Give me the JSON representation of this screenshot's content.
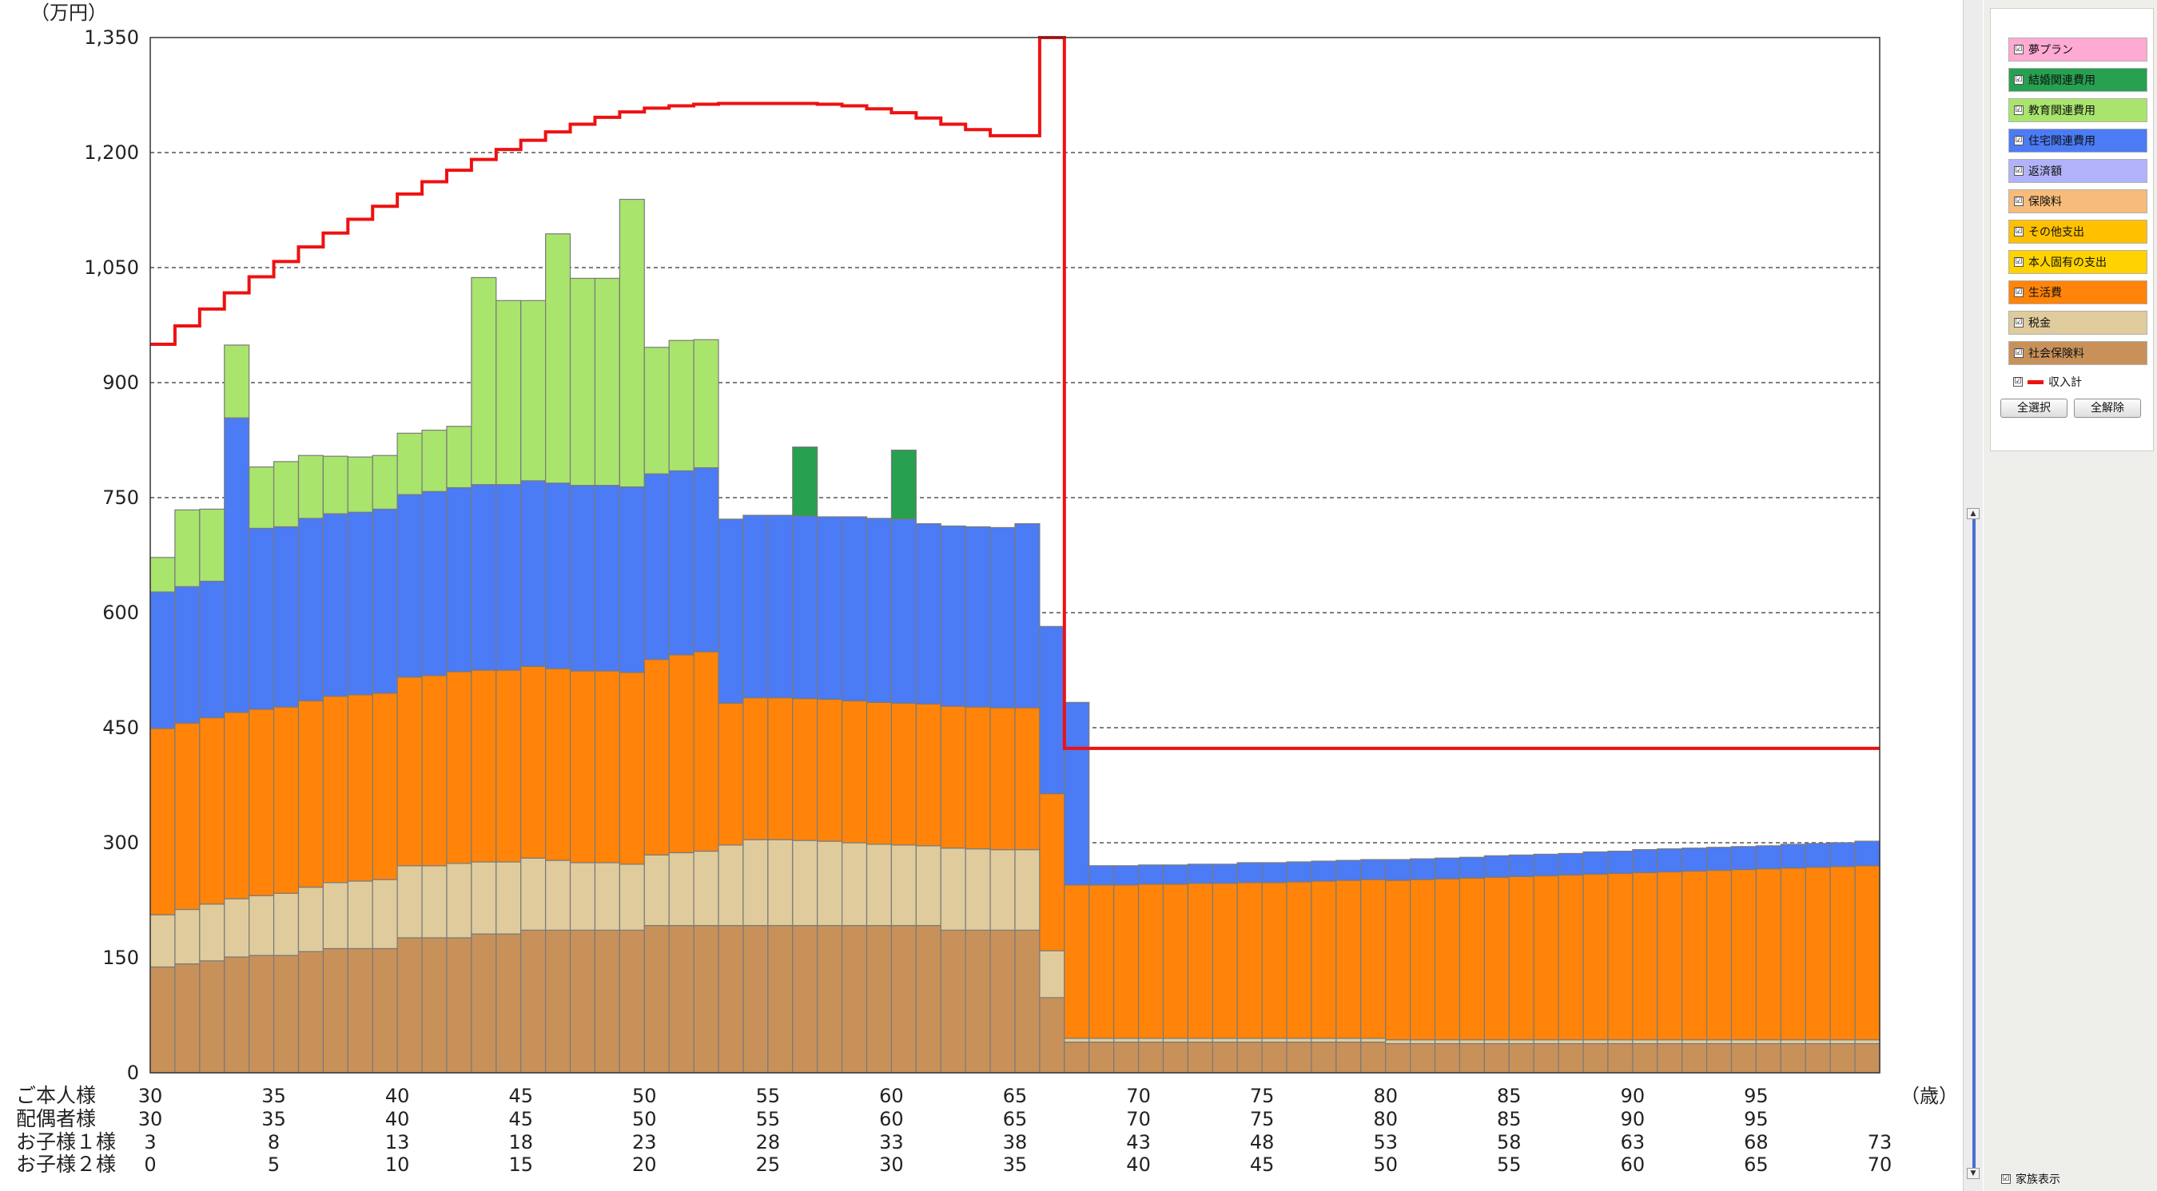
{
  "chart_data": {
    "type": "bar",
    "stacked": true,
    "yunit": "（万円）",
    "xunit": "（歳）",
    "ylim": [
      0,
      1350
    ],
    "yticks": [
      "0",
      "150",
      "300",
      "450",
      "600",
      "750",
      "900",
      "1,050",
      "1,200",
      "1,350"
    ],
    "grid": "horizontal dashed",
    "ages": [
      30,
      31,
      32,
      33,
      34,
      35,
      36,
      37,
      38,
      39,
      40,
      41,
      42,
      43,
      44,
      45,
      46,
      47,
      48,
      49,
      50,
      51,
      52,
      53,
      54,
      55,
      56,
      57,
      58,
      59,
      60,
      61,
      62,
      63,
      64,
      65,
      66,
      67,
      68,
      69,
      70,
      71,
      72,
      73,
      74,
      75,
      76,
      77,
      78,
      79,
      80,
      81,
      82,
      83,
      84,
      85,
      86,
      87,
      88,
      89,
      90,
      91,
      92,
      93,
      94,
      95,
      96,
      97,
      98,
      99
    ],
    "series": [
      {
        "name": "社会保険料",
        "color": "#c8915a",
        "values": [
          138,
          142,
          146,
          151,
          153,
          153,
          158,
          162,
          162,
          162,
          176,
          176,
          176,
          181,
          181,
          186,
          186,
          186,
          186,
          186,
          192,
          192,
          192,
          192,
          192,
          192,
          192,
          192,
          192,
          192,
          192,
          192,
          186,
          186,
          186,
          186,
          98,
          40,
          40,
          40,
          40,
          40,
          40,
          40,
          40,
          40,
          40,
          40,
          40,
          40,
          38,
          38,
          38,
          38,
          38,
          38,
          38,
          38,
          38,
          38,
          38,
          38,
          38,
          38,
          38,
          38,
          38,
          38,
          38,
          38
        ]
      },
      {
        "name": "税金",
        "color": "#dfcb9c",
        "values": [
          68,
          71,
          74,
          76,
          78,
          81,
          84,
          86,
          88,
          90,
          94,
          94,
          97,
          94,
          94,
          94,
          91,
          88,
          88,
          86,
          92,
          95,
          97,
          105,
          112,
          112,
          111,
          110,
          108,
          106,
          105,
          104,
          107,
          106,
          105,
          105,
          61,
          5,
          5,
          5,
          5,
          5,
          5,
          5,
          5,
          5,
          5,
          5,
          5,
          5,
          5,
          5,
          5,
          5,
          5,
          5,
          5,
          5,
          5,
          5,
          5,
          5,
          5,
          5,
          5,
          5,
          5,
          5,
          5,
          5
        ]
      },
      {
        "name": "生活費",
        "color": "#ff8409",
        "values": [
          243,
          243,
          243,
          243,
          243,
          243,
          243,
          243,
          243,
          243,
          246,
          248,
          250,
          250,
          250,
          250,
          250,
          250,
          250,
          250,
          255,
          258,
          260,
          185,
          185,
          185,
          185,
          185,
          185,
          185,
          185,
          185,
          185,
          185,
          185,
          185,
          205,
          200,
          200,
          200,
          201,
          201,
          202,
          202,
          203,
          203,
          204,
          205,
          206,
          207,
          208,
          209,
          210,
          211,
          212,
          213,
          214,
          215,
          216,
          217,
          218,
          219,
          220,
          221,
          222,
          223,
          224,
          225,
          226,
          227
        ]
      },
      {
        "name": "本人固有の支出",
        "color": "#ffd200",
        "values": [
          0,
          0,
          0,
          0,
          0,
          0,
          0,
          0,
          0,
          0,
          0,
          0,
          0,
          0,
          0,
          0,
          0,
          0,
          0,
          0,
          0,
          0,
          0,
          0,
          0,
          0,
          0,
          0,
          0,
          0,
          0,
          0,
          0,
          0,
          0,
          0,
          0,
          0,
          0,
          0,
          0,
          0,
          0,
          0,
          0,
          0,
          0,
          0,
          0,
          0,
          0,
          0,
          0,
          0,
          0,
          0,
          0,
          0,
          0,
          0,
          0,
          0,
          0,
          0,
          0,
          0,
          0,
          0,
          0,
          0
        ]
      },
      {
        "name": "その他支出",
        "color": "#ffc000",
        "values": [
          0,
          0,
          0,
          0,
          0,
          0,
          0,
          0,
          0,
          0,
          0,
          0,
          0,
          0,
          0,
          0,
          0,
          0,
          0,
          0,
          0,
          0,
          0,
          0,
          0,
          0,
          0,
          0,
          0,
          0,
          0,
          0,
          0,
          0,
          0,
          0,
          0,
          0,
          0,
          0,
          0,
          0,
          0,
          0,
          0,
          0,
          0,
          0,
          0,
          0,
          0,
          0,
          0,
          0,
          0,
          0,
          0,
          0,
          0,
          0,
          0,
          0,
          0,
          0,
          0,
          0,
          0,
          0,
          0,
          0
        ]
      },
      {
        "name": "保険料",
        "color": "#f7bc7a",
        "values": [
          0,
          0,
          0,
          0,
          0,
          0,
          0,
          0,
          0,
          0,
          0,
          0,
          0,
          0,
          0,
          0,
          0,
          0,
          0,
          0,
          0,
          0,
          0,
          0,
          0,
          0,
          0,
          0,
          0,
          0,
          0,
          0,
          0,
          0,
          0,
          0,
          0,
          0,
          0,
          0,
          0,
          0,
          0,
          0,
          0,
          0,
          0,
          0,
          0,
          0,
          0,
          0,
          0,
          0,
          0,
          0,
          0,
          0,
          0,
          0,
          0,
          0,
          0,
          0,
          0,
          0,
          0,
          0,
          0,
          0
        ]
      },
      {
        "name": "返済額",
        "color": "#b2b2fa",
        "values": [
          0,
          0,
          0,
          0,
          0,
          0,
          0,
          0,
          0,
          0,
          0,
          0,
          0,
          0,
          0,
          0,
          0,
          0,
          0,
          0,
          0,
          0,
          0,
          0,
          0,
          0,
          0,
          0,
          0,
          0,
          0,
          0,
          0,
          0,
          0,
          0,
          0,
          0,
          0,
          0,
          0,
          0,
          0,
          0,
          0,
          0,
          0,
          0,
          0,
          0,
          0,
          0,
          0,
          0,
          0,
          0,
          0,
          0,
          0,
          0,
          0,
          0,
          0,
          0,
          0,
          0,
          0,
          0,
          0,
          0
        ]
      },
      {
        "name": "住宅関連費用",
        "color": "#4b7bf5",
        "values": [
          178,
          178,
          178,
          384,
          236,
          235,
          238,
          238,
          238,
          240,
          238,
          240,
          240,
          242,
          242,
          242,
          242,
          242,
          242,
          242,
          242,
          240,
          240,
          240,
          238,
          238,
          238,
          238,
          240,
          240,
          240,
          235,
          235,
          235,
          235,
          240,
          218,
          238,
          25,
          25,
          25,
          25,
          25,
          25,
          26,
          26,
          26,
          26,
          26,
          26,
          27,
          27,
          27,
          27,
          28,
          28,
          28,
          28,
          29,
          29,
          30,
          30,
          30,
          30,
          30,
          30,
          31,
          31,
          31,
          32
        ]
      },
      {
        "name": "教育関連費用",
        "color": "#a9e46d",
        "values": [
          45,
          100,
          94,
          95,
          80,
          85,
          82,
          75,
          72,
          70,
          80,
          80,
          80,
          270,
          240,
          235,
          325,
          270,
          270,
          375,
          165,
          170,
          167,
          0,
          0,
          0,
          0,
          0,
          0,
          0,
          0,
          0,
          0,
          0,
          0,
          0,
          0,
          0,
          0,
          0,
          0,
          0,
          0,
          0,
          0,
          0,
          0,
          0,
          0,
          0,
          0,
          0,
          0,
          0,
          0,
          0,
          0,
          0,
          0,
          0,
          0,
          0,
          0,
          0,
          0,
          0,
          0,
          0,
          0,
          0
        ]
      },
      {
        "name": "結婚関連費用",
        "color": "#27a050",
        "values": [
          0,
          0,
          0,
          0,
          0,
          0,
          0,
          0,
          0,
          0,
          0,
          0,
          0,
          0,
          0,
          0,
          0,
          0,
          0,
          0,
          0,
          0,
          0,
          0,
          0,
          0,
          90,
          0,
          0,
          0,
          90,
          0,
          0,
          0,
          0,
          0,
          0,
          0,
          0,
          0,
          0,
          0,
          0,
          0,
          0,
          0,
          0,
          0,
          0,
          0,
          0,
          0,
          0,
          0,
          0,
          0,
          0,
          0,
          0,
          0,
          0,
          0,
          0,
          0,
          0,
          0,
          0,
          0,
          0,
          0
        ]
      },
      {
        "name": "夢プラン",
        "color": "#ffaad2",
        "values": [
          0,
          0,
          0,
          0,
          0,
          0,
          0,
          0,
          0,
          0,
          0,
          0,
          0,
          0,
          0,
          0,
          0,
          0,
          0,
          0,
          0,
          0,
          0,
          0,
          0,
          0,
          0,
          0,
          0,
          0,
          0,
          0,
          0,
          0,
          0,
          0,
          0,
          0,
          0,
          0,
          0,
          0,
          0,
          0,
          0,
          0,
          0,
          0,
          0,
          0,
          0,
          0,
          0,
          0,
          0,
          0,
          0,
          0,
          0,
          0,
          0,
          0,
          0,
          0,
          0,
          0,
          0,
          0,
          0,
          0
        ]
      }
    ],
    "income_line": {
      "name": "収入計",
      "color": "#ee1111",
      "values": [
        950,
        974,
        996,
        1017,
        1038,
        1058,
        1077,
        1095,
        1113,
        1130,
        1146,
        1162,
        1177,
        1191,
        1204,
        1216,
        1227,
        1237,
        1246,
        1253,
        1258,
        1261,
        1263,
        1264,
        1264,
        1264,
        1264,
        1263,
        1261,
        1257,
        1252,
        1245,
        1237,
        1230,
        1222,
        1222,
        2000,
        423,
        423,
        423,
        423,
        423,
        423,
        423,
        423,
        423,
        423,
        423,
        423,
        423,
        423,
        423,
        423,
        423,
        423,
        423,
        423,
        423,
        423,
        423,
        423,
        423,
        423,
        423,
        423,
        423,
        423,
        423,
        423,
        423
      ]
    },
    "age_rows": [
      {
        "label": "ご本人様",
        "ticks": [
          "30",
          "35",
          "40",
          "45",
          "50",
          "55",
          "60",
          "65",
          "70",
          "75",
          "80",
          "85",
          "90",
          "95",
          ""
        ]
      },
      {
        "label": "配偶者様",
        "ticks": [
          "30",
          "35",
          "40",
          "45",
          "50",
          "55",
          "60",
          "65",
          "70",
          "75",
          "80",
          "85",
          "90",
          "95",
          ""
        ]
      },
      {
        "label": "お子様１様",
        "ticks": [
          "3",
          "8",
          "13",
          "18",
          "23",
          "28",
          "33",
          "38",
          "43",
          "48",
          "53",
          "58",
          "63",
          "68",
          "73"
        ]
      },
      {
        "label": "お子様２様",
        "ticks": [
          "0",
          "5",
          "10",
          "15",
          "20",
          "25",
          "30",
          "35",
          "40",
          "45",
          "50",
          "55",
          "60",
          "65",
          "70"
        ]
      }
    ]
  },
  "legend": {
    "items": [
      {
        "label": "夢プラン",
        "color": "#ffaad2",
        "checked": "☑"
      },
      {
        "label": "結婚関連費用",
        "color": "#27a050",
        "checked": "☑"
      },
      {
        "label": "教育関連費用",
        "color": "#a9e46d",
        "checked": "☑"
      },
      {
        "label": "住宅関連費用",
        "color": "#4b7bf5",
        "checked": "☑"
      },
      {
        "label": "返済額",
        "color": "#b2b2fa",
        "checked": "☑"
      },
      {
        "label": "保険料",
        "color": "#f7bc7a",
        "checked": "☑"
      },
      {
        "label": "その他支出",
        "color": "#ffc000",
        "checked": "☑"
      },
      {
        "label": "本人固有の支出",
        "color": "#ffd200",
        "checked": "☑"
      },
      {
        "label": "生活費",
        "color": "#ff8409",
        "checked": "☑"
      },
      {
        "label": "税金",
        "color": "#dfcb9c",
        "checked": "☑"
      },
      {
        "label": "社会保険料",
        "color": "#c8915a",
        "checked": "☑"
      }
    ],
    "income_label": "収入計",
    "select_all_label": "全選択",
    "deselect_all_label": "全解除",
    "family_display_label": "家族表示"
  }
}
